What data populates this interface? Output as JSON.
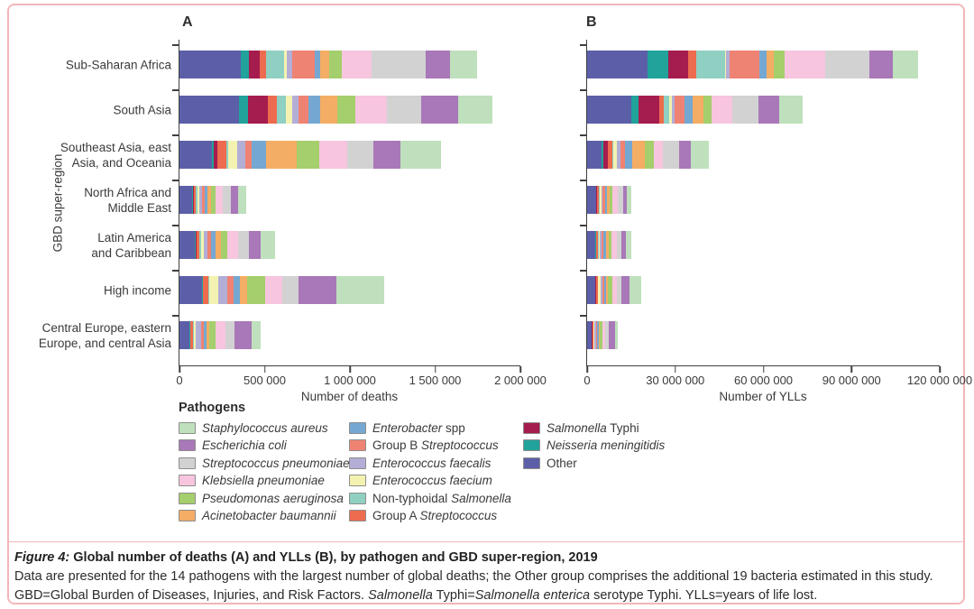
{
  "figure": {
    "panel_a_label": "A",
    "panel_b_label": "B",
    "y_axis_title": "GBD super-region",
    "legend_title": "Pathogens"
  },
  "caption": {
    "figure_label": "Figure 4:",
    "title": " Global number of deaths (A) and YLLs (B), by pathogen and GBD super-region, 2019",
    "line2": "Data are presented for the 14 pathogens with the largest number of global deaths; the Other group comprises the additional 19 bacteria estimated in this study.",
    "line3_parts": [
      {
        "t": "GBD=Global Burden of Diseases, Injuries, and Risk Factors. ",
        "i": false
      },
      {
        "t": "Salmonella",
        "i": true
      },
      {
        "t": " Typhi=",
        "i": false
      },
      {
        "t": "Salmonella enterica",
        "i": true
      },
      {
        "t": " serotype Typhi. YLLs=years of life lost.",
        "i": false
      }
    ]
  },
  "legend": {
    "entries": [
      {
        "col": 0,
        "color": "#BFE0BC",
        "parts": [
          {
            "t": "Staphylococcus aureus",
            "i": true
          }
        ]
      },
      {
        "col": 0,
        "color": "#A878B8",
        "parts": [
          {
            "t": "Escherichia coli",
            "i": true
          }
        ]
      },
      {
        "col": 0,
        "color": "#D2D2D2",
        "parts": [
          {
            "t": "Streptococcus pneumoniae",
            "i": true
          }
        ]
      },
      {
        "col": 0,
        "color": "#F7C5DE",
        "parts": [
          {
            "t": "Klebsiella pneumoniae",
            "i": true
          }
        ]
      },
      {
        "col": 0,
        "color": "#A5CE6C",
        "parts": [
          {
            "t": "Pseudomonas aeruginosa",
            "i": true
          }
        ]
      },
      {
        "col": 0,
        "color": "#F4AD64",
        "parts": [
          {
            "t": "Acinetobacter baumannii",
            "i": true
          }
        ]
      },
      {
        "col": 1,
        "color": "#74A8D2",
        "parts": [
          {
            "t": "Enterobacter",
            "i": true
          },
          {
            "t": " spp",
            "i": false
          }
        ]
      },
      {
        "col": 1,
        "color": "#EF8373",
        "parts": [
          {
            "t": "Group B ",
            "i": false
          },
          {
            "t": "Streptococcus",
            "i": true
          }
        ]
      },
      {
        "col": 1,
        "color": "#B3AED6",
        "parts": [
          {
            "t": "Enterococcus faecalis",
            "i": true
          }
        ]
      },
      {
        "col": 1,
        "color": "#F4F2B0",
        "parts": [
          {
            "t": "Enterococcus faecium",
            "i": true
          }
        ]
      },
      {
        "col": 1,
        "color": "#8FD0C2",
        "parts": [
          {
            "t": "Non-typhoidal ",
            "i": false
          },
          {
            "t": "Salmonella",
            "i": true
          }
        ]
      },
      {
        "col": 1,
        "color": "#ED6B4F",
        "parts": [
          {
            "t": "Group A ",
            "i": false
          },
          {
            "t": "Streptococcus",
            "i": true
          }
        ]
      },
      {
        "col": 2,
        "color": "#A51C4E",
        "parts": [
          {
            "t": "Salmonella",
            "i": true
          },
          {
            "t": " Typhi",
            "i": false
          }
        ]
      },
      {
        "col": 2,
        "color": "#21A29B",
        "parts": [
          {
            "t": "Neisseria meningitidis",
            "i": true
          }
        ]
      },
      {
        "col": 2,
        "color": "#5C5FA8",
        "parts": [
          {
            "t": "Other",
            "i": false
          }
        ]
      }
    ]
  },
  "regions_lines": [
    [
      "Sub-Saharan Africa"
    ],
    [
      "South Asia"
    ],
    [
      "Southeast Asia, east",
      "Asia, and Oceania"
    ],
    [
      "North Africa and",
      "Middle East"
    ],
    [
      "Latin America",
      "and Caribbean"
    ],
    [
      "High income"
    ],
    [
      "Central Europe, eastern",
      "Europe, and central Asia"
    ]
  ],
  "chart_data": [
    {
      "type": "bar",
      "stacked": true,
      "orientation": "horizontal",
      "panel": "A",
      "xlabel": "Number of deaths",
      "ylabel": "GBD super-region",
      "xlim": [
        0,
        2000000
      ],
      "xticks": [
        0,
        500000,
        1000000,
        1500000,
        2000000
      ],
      "xtick_labels": [
        "0",
        "500 000",
        "1 000 000",
        "1 500 000",
        "2 000 000"
      ],
      "grid": false,
      "categories": [
        "Sub-Saharan Africa",
        "South Asia",
        "Southeast Asia, east Asia, and Oceania",
        "North Africa and Middle East",
        "Latin America and Caribbean",
        "High income",
        "Central Europe, eastern Europe, and central Asia"
      ],
      "series": [
        {
          "name": "Other",
          "color": "#5C5FA8",
          "values": [
            360000,
            347000,
            189000,
            74000,
            89000,
            132000,
            58000
          ]
        },
        {
          "name": "Neisseria meningitidis",
          "color": "#21A29B",
          "values": [
            48000,
            53000,
            11000,
            5000,
            5000,
            3000,
            3000
          ]
        },
        {
          "name": "Salmonella Typhi",
          "color": "#A51C4E",
          "values": [
            63000,
            121000,
            21000,
            5000,
            5000,
            2000,
            2000
          ]
        },
        {
          "name": "Group A Streptococcus",
          "color": "#ED6B4F",
          "values": [
            37000,
            53000,
            53000,
            11000,
            16000,
            32000,
            16000
          ]
        },
        {
          "name": "Non-typhoidal Salmonella",
          "color": "#8FD0C2",
          "values": [
            105000,
            53000,
            11000,
            11000,
            11000,
            5000,
            5000
          ]
        },
        {
          "name": "Enterococcus faecium",
          "color": "#F4F2B0",
          "values": [
            16000,
            37000,
            53000,
            11000,
            16000,
            53000,
            11000
          ]
        },
        {
          "name": "Enterococcus faecalis",
          "color": "#B3AED6",
          "values": [
            30000,
            37000,
            47000,
            16000,
            21000,
            53000,
            32000
          ]
        },
        {
          "name": "Group B Streptococcus",
          "color": "#EF8373",
          "values": [
            137000,
            58000,
            37000,
            16000,
            21000,
            37000,
            16000
          ]
        },
        {
          "name": "Enterobacter spp",
          "color": "#74A8D2",
          "values": [
            32000,
            68000,
            84000,
            16000,
            26000,
            37000,
            16000
          ]
        },
        {
          "name": "Acinetobacter baumannii",
          "color": "#F4AD64",
          "values": [
            53000,
            100000,
            184000,
            21000,
            32000,
            42000,
            16000
          ]
        },
        {
          "name": "Pseudomonas aeruginosa",
          "color": "#A5CE6C",
          "values": [
            74000,
            105000,
            132000,
            26000,
            37000,
            105000,
            37000
          ]
        },
        {
          "name": "Klebsiella pneumoniae",
          "color": "#F7C5DE",
          "values": [
            174000,
            184000,
            163000,
            42000,
            63000,
            105000,
            58000
          ]
        },
        {
          "name": "Streptococcus pneumoniae",
          "color": "#D2D2D2",
          "values": [
            316000,
            200000,
            153000,
            47000,
            68000,
            95000,
            53000
          ]
        },
        {
          "name": "Escherichia coli",
          "color": "#A878B8",
          "values": [
            142000,
            221000,
            158000,
            42000,
            68000,
            221000,
            100000
          ]
        },
        {
          "name": "Staphylococcus aureus",
          "color": "#BFE0BC",
          "values": [
            158000,
            200000,
            237000,
            47000,
            84000,
            279000,
            53000
          ]
        }
      ]
    },
    {
      "type": "bar",
      "stacked": true,
      "orientation": "horizontal",
      "panel": "B",
      "xlabel": "Number of YLLs",
      "ylabel": "GBD super-region",
      "xlim": [
        0,
        120000000
      ],
      "xticks": [
        0,
        30000000,
        60000000,
        90000000,
        120000000
      ],
      "xtick_labels": [
        "0",
        "30 000 000",
        "60 000 000",
        "90 000 000",
        "120 000 000"
      ],
      "grid": false,
      "categories": [
        "Sub-Saharan Africa",
        "South Asia",
        "Southeast Asia, east Asia, and Oceania",
        "North Africa and Middle East",
        "Latin America and Caribbean",
        "High income",
        "Central Europe, eastern Europe, and central Asia"
      ],
      "series": [
        {
          "name": "Other",
          "color": "#5C5FA8",
          "values": [
            20500000,
            15000000,
            5000000,
            3000000,
            2800000,
            2800000,
            1500000
          ]
        },
        {
          "name": "Neisseria meningitidis",
          "color": "#21A29B",
          "values": [
            7000000,
            2500000,
            400000,
            200000,
            200000,
            100000,
            100000
          ]
        },
        {
          "name": "Salmonella Typhi",
          "color": "#A51C4E",
          "values": [
            7000000,
            7000000,
            1800000,
            200000,
            100000,
            100000,
            100000
          ]
        },
        {
          "name": "Group A Streptococcus",
          "color": "#ED6B4F",
          "values": [
            2500000,
            1700000,
            1500000,
            500000,
            500000,
            600000,
            400000
          ]
        },
        {
          "name": "Non-typhoidal Salmonella",
          "color": "#8FD0C2",
          "values": [
            10000000,
            1600000,
            300000,
            500000,
            300000,
            100000,
            100000
          ]
        },
        {
          "name": "Enterococcus faecium",
          "color": "#F4F2B0",
          "values": [
            400000,
            1000000,
            1200000,
            400000,
            400000,
            800000,
            300000
          ]
        },
        {
          "name": "Enterococcus faecalis",
          "color": "#B3AED6",
          "values": [
            1100000,
            1000000,
            1100000,
            500000,
            500000,
            800000,
            600000
          ]
        },
        {
          "name": "Group B Streptococcus",
          "color": "#EF8373",
          "values": [
            10000000,
            3500000,
            1500000,
            800000,
            800000,
            600000,
            400000
          ]
        },
        {
          "name": "Enterobacter spp",
          "color": "#74A8D2",
          "values": [
            2600000,
            2500000,
            2500000,
            700000,
            800000,
            600000,
            400000
          ]
        },
        {
          "name": "Acinetobacter baumannii",
          "color": "#F4AD64",
          "values": [
            2500000,
            3700000,
            4500000,
            900000,
            900000,
            700000,
            400000
          ]
        },
        {
          "name": "Pseudomonas aeruginosa",
          "color": "#A5CE6C",
          "values": [
            3500000,
            2800000,
            3000000,
            1000000,
            1000000,
            1500000,
            800000
          ]
        },
        {
          "name": "Klebsiella pneumoniae",
          "color": "#F7C5DE",
          "values": [
            14000000,
            7000000,
            3100000,
            1800000,
            1800000,
            1600000,
            1200000
          ]
        },
        {
          "name": "Streptococcus pneumoniae",
          "color": "#D2D2D2",
          "values": [
            15000000,
            9000000,
            5500000,
            1700000,
            1700000,
            1400000,
            1100000
          ]
        },
        {
          "name": "Escherichia coli",
          "color": "#A878B8",
          "values": [
            8000000,
            7000000,
            4000000,
            1400000,
            1500000,
            2900000,
            2000000
          ]
        },
        {
          "name": "Staphylococcus aureus",
          "color": "#BFE0BC",
          "values": [
            8500000,
            8000000,
            6000000,
            1500000,
            1800000,
            4000000,
            1200000
          ]
        }
      ]
    }
  ]
}
